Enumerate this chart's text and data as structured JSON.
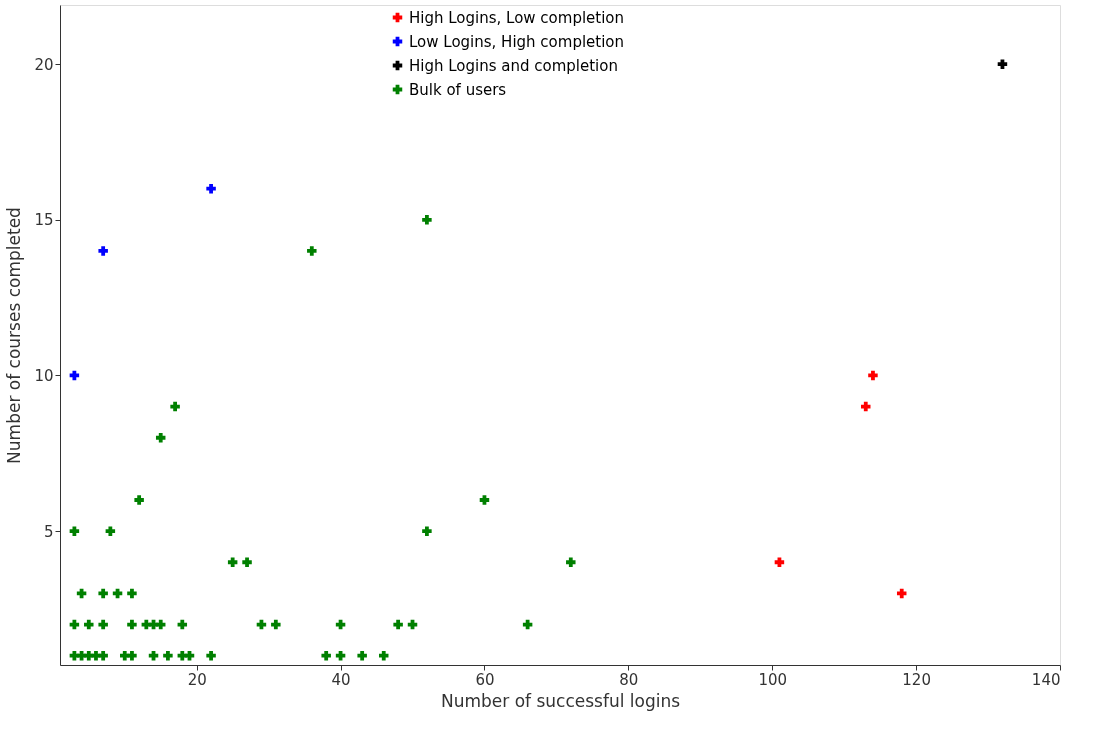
{
  "chart_data": {
    "type": "scatter",
    "xlabel": "Number of successful logins",
    "ylabel": "Number of courses completed",
    "xlim": [
      1,
      140
    ],
    "ylim": [
      0.7,
      21.9
    ],
    "xticks": [
      20,
      40,
      60,
      80,
      100,
      120,
      140
    ],
    "yticks": [
      5,
      10,
      15,
      20
    ],
    "grid": false,
    "legend": "top",
    "marker": "cross",
    "series": [
      {
        "name": "High Logins, Low completion",
        "color": "#ff0000",
        "x": [
          101,
          113,
          114,
          118
        ],
        "values": [
          4,
          9,
          10,
          3
        ]
      },
      {
        "name": "Low Logins, High completion",
        "color": "#0000ff",
        "x": [
          3,
          7,
          22
        ],
        "values": [
          10,
          14,
          16
        ]
      },
      {
        "name": "High Logins and completion",
        "color": "#000000",
        "x": [
          132
        ],
        "values": [
          20
        ]
      },
      {
        "name": "Bulk of users",
        "color": "#008000",
        "x": [
          3,
          4,
          5,
          6,
          7,
          10,
          11,
          14,
          16,
          18,
          19,
          22,
          38,
          40,
          43,
          46,
          3,
          5,
          7,
          11,
          13,
          14,
          15,
          18,
          29,
          31,
          40,
          48,
          50,
          66,
          4,
          7,
          9,
          11,
          25,
          27,
          72,
          3,
          8,
          52,
          12,
          60,
          15,
          17,
          36,
          52
        ],
        "values": [
          1,
          1,
          1,
          1,
          1,
          1,
          1,
          1,
          1,
          1,
          1,
          1,
          1,
          1,
          1,
          1,
          2,
          2,
          2,
          2,
          2,
          2,
          2,
          2,
          2,
          2,
          2,
          2,
          2,
          2,
          3,
          3,
          3,
          3,
          4,
          4,
          4,
          5,
          5,
          5,
          6,
          6,
          8,
          9,
          14,
          15
        ]
      }
    ]
  }
}
